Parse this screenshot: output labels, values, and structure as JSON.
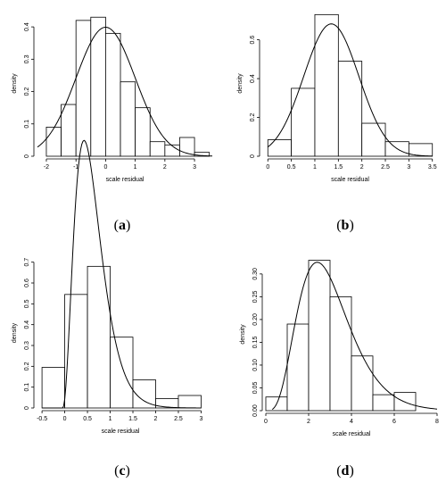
{
  "chart_data": [
    {
      "id": "a",
      "caption": "(a)",
      "caption_letter": "a",
      "type": "bar",
      "subtype": "histogram-with-density-curve",
      "xlabel": "scale residual",
      "ylabel": "density",
      "xlim": [
        -2.3,
        3.6
      ],
      "ylim": [
        0,
        0.45
      ],
      "xticks": [
        -2,
        -1,
        0,
        1,
        2,
        3
      ],
      "yticks": [
        0.0,
        0.1,
        0.2,
        0.3,
        0.4
      ],
      "bin_edges": [
        -2.0,
        -1.5,
        -1.0,
        -0.5,
        0.0,
        0.5,
        1.0,
        1.5,
        2.0,
        2.5,
        3.0,
        3.5
      ],
      "densities": [
        0.09,
        0.16,
        0.42,
        0.43,
        0.38,
        0.23,
        0.15,
        0.045,
        0.035,
        0.058,
        0.012
      ],
      "curve": {
        "kind": "normal",
        "mean": 0.0,
        "sd": 1.0,
        "x_range": [
          -2.3,
          3.6
        ]
      }
    },
    {
      "id": "b",
      "caption": "(b)",
      "caption_letter": "b",
      "type": "bar",
      "subtype": "histogram-with-density-curve",
      "xlabel": "scale residual",
      "ylabel": "density",
      "xlim": [
        -0.1,
        3.6
      ],
      "ylim": [
        0,
        0.75
      ],
      "xticks": [
        0.0,
        0.5,
        1.0,
        1.5,
        2.0,
        2.5,
        3.0,
        3.5
      ],
      "yticks": [
        0.0,
        0.2,
        0.4,
        0.6
      ],
      "bin_edges": [
        0.0,
        0.5,
        1.0,
        1.5,
        2.0,
        2.5,
        3.0,
        3.5
      ],
      "densities": [
        0.085,
        0.35,
        0.73,
        0.49,
        0.17,
        0.075,
        0.065
      ],
      "curve": {
        "kind": "normal",
        "mean": 1.35,
        "sd": 0.585,
        "x_range": [
          0.0,
          3.5
        ]
      }
    },
    {
      "id": "c",
      "caption": "(c)",
      "caption_letter": "c",
      "type": "bar",
      "subtype": "histogram-with-density-curve",
      "xlabel": "scale residual",
      "ylabel": "density",
      "xlim": [
        -0.6,
        3.05
      ],
      "ylim": [
        0,
        0.72
      ],
      "xticks": [
        -0.5,
        0.0,
        0.5,
        1.0,
        1.5,
        2.0,
        2.5,
        3.0
      ],
      "yticks": [
        0.0,
        0.1,
        0.2,
        0.3,
        0.4,
        0.5,
        0.6,
        0.7
      ],
      "bin_edges": [
        -0.5,
        0.0,
        0.5,
        1.0,
        1.5,
        2.0,
        2.5,
        3.0
      ],
      "densities": [
        0.195,
        0.545,
        0.68,
        0.34,
        0.135,
        0.045,
        0.06
      ],
      "curve": {
        "kind": "gamma",
        "shape": 3.5,
        "scale": 0.19,
        "shift": -0.05,
        "x_range": [
          -0.5,
          3.0
        ]
      }
    },
    {
      "id": "d",
      "caption": "(d)",
      "caption_letter": "d",
      "type": "bar",
      "subtype": "histogram-with-density-curve",
      "xlabel": "scale residual",
      "ylabel": "density",
      "xlim": [
        0,
        8
      ],
      "ylim": [
        0,
        0.335
      ],
      "xticks": [
        0,
        2,
        4,
        6,
        8
      ],
      "yticks": [
        0.0,
        0.05,
        0.1,
        0.15,
        0.2,
        0.25,
        0.3
      ],
      "ytick_labels": [
        "0.00",
        "0.05",
        "0.10",
        "0.15",
        "0.20",
        "0.25",
        "0.30"
      ],
      "bin_edges": [
        0,
        1,
        2,
        3,
        4,
        5,
        6,
        7
      ],
      "densities": [
        0.03,
        0.19,
        0.33,
        0.25,
        0.12,
        0.035,
        0.04
      ],
      "curve": {
        "kind": "gamma",
        "shape": 5,
        "scale": 0.6,
        "shift": 0,
        "x_range": [
          0.3,
          8
        ]
      }
    }
  ]
}
